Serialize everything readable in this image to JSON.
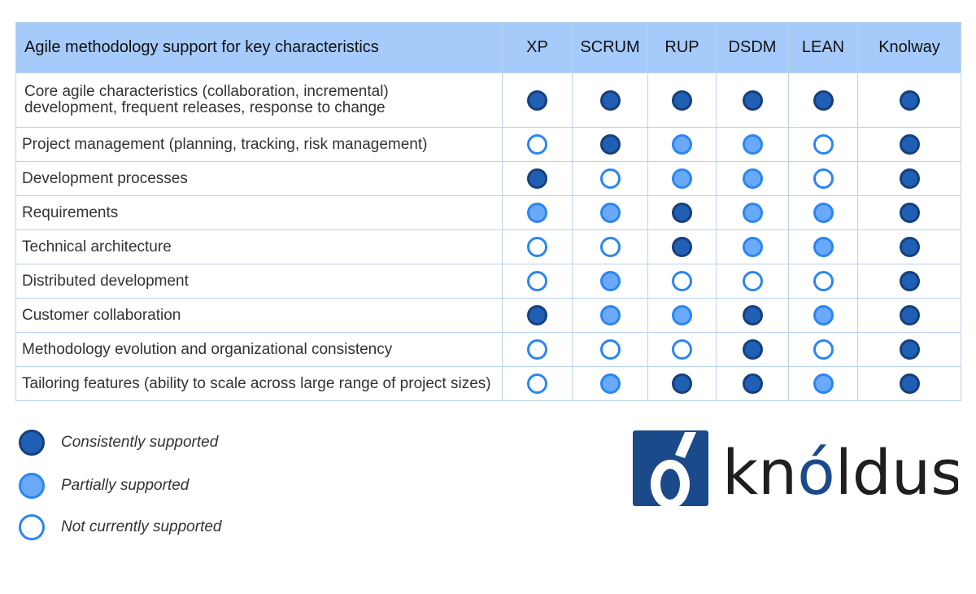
{
  "table": {
    "title": "Agile methodology support for key characteristics",
    "columns": [
      "XP",
      "SCRUM",
      "RUP",
      "DSDM",
      "LEAN",
      "Knolway"
    ],
    "rows": [
      {
        "label_line1": "Core agile characteristics (collaboration, incremental)",
        "label_line2": "development, frequent releases, response to change",
        "support": [
          "full",
          "full",
          "full",
          "full",
          "full",
          "full"
        ]
      },
      {
        "label": "Project management (planning, tracking, risk management)",
        "support": [
          "none",
          "full",
          "partial",
          "partial",
          "none",
          "full"
        ]
      },
      {
        "label": "Development processes",
        "support": [
          "full",
          "none",
          "partial",
          "partial",
          "none",
          "full"
        ]
      },
      {
        "label": "Requirements",
        "support": [
          "partial",
          "partial",
          "full",
          "partial",
          "partial",
          "full"
        ]
      },
      {
        "label": "Technical architecture",
        "support": [
          "none",
          "none",
          "full",
          "partial",
          "partial",
          "full"
        ]
      },
      {
        "label": "Distributed development",
        "support": [
          "none",
          "partial",
          "none",
          "none",
          "none",
          "full"
        ]
      },
      {
        "label": "Customer collaboration",
        "support": [
          "full",
          "partial",
          "partial",
          "full",
          "partial",
          "full"
        ]
      },
      {
        "label": "Methodology evolution and organizational consistency",
        "support": [
          "none",
          "none",
          "none",
          "full",
          "none",
          "full"
        ]
      },
      {
        "label": "Tailoring features (ability to scale across large range of project sizes)",
        "support": [
          "none",
          "partial",
          "full",
          "full",
          "partial",
          "full"
        ]
      }
    ]
  },
  "legend": {
    "full": "Consistently supported",
    "partial": "Partially supported",
    "none": "Not currently supported"
  },
  "logo": {
    "text": "knóldus",
    "colors": {
      "primary": "#1b4a8a",
      "text": "#1f1f1f"
    }
  },
  "colors": {
    "header_bg": "#a6cbfb",
    "full": "#1f5fb5",
    "partial": "#6aa9f8",
    "none_border": "#2b86f0"
  }
}
